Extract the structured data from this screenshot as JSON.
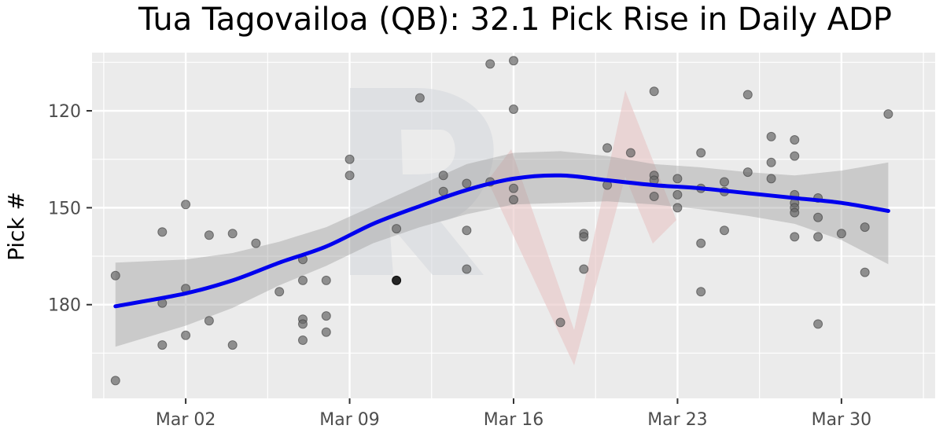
{
  "chart_data": {
    "type": "scatter",
    "title": "Tua Tagovailoa (QB): 32.1 Pick Rise in Daily ADP",
    "xlabel": "",
    "ylabel": "Pick #",
    "x_axis": {
      "type": "date",
      "range": [
        "2020-02-27",
        "2020-04-03"
      ],
      "ticks": [
        {
          "date": "2020-03-02",
          "label": "Mar 02"
        },
        {
          "date": "2020-03-09",
          "label": "Mar 09"
        },
        {
          "date": "2020-03-16",
          "label": "Mar 16"
        },
        {
          "date": "2020-03-23",
          "label": "Mar 23"
        },
        {
          "date": "2020-03-30",
          "label": "Mar 30"
        }
      ]
    },
    "y_axis": {
      "reversed": true,
      "range": [
        102,
        209
      ],
      "ticks": [
        120,
        150,
        180
      ]
    },
    "grid": true,
    "background": "#ebebeb",
    "point_color": "#666666",
    "highlight_color": "#1a1a1a",
    "trend_color": "#0000ee",
    "band_color": "#999999",
    "points": [
      {
        "date": "2020-02-28",
        "pick": 171.0
      },
      {
        "date": "2020-02-28",
        "pick": 203.5
      },
      {
        "date": "2020-03-01",
        "pick": 157.5
      },
      {
        "date": "2020-03-01",
        "pick": 179.5
      },
      {
        "date": "2020-03-01",
        "pick": 192.5
      },
      {
        "date": "2020-03-02",
        "pick": 149.0
      },
      {
        "date": "2020-03-02",
        "pick": 175.0
      },
      {
        "date": "2020-03-02",
        "pick": 189.5
      },
      {
        "date": "2020-03-03",
        "pick": 158.5
      },
      {
        "date": "2020-03-03",
        "pick": 185.0
      },
      {
        "date": "2020-03-04",
        "pick": 158.0
      },
      {
        "date": "2020-03-04",
        "pick": 192.5
      },
      {
        "date": "2020-03-05",
        "pick": 161.0
      },
      {
        "date": "2020-03-06",
        "pick": 176.0
      },
      {
        "date": "2020-03-07",
        "pick": 166.0
      },
      {
        "date": "2020-03-07",
        "pick": 172.5
      },
      {
        "date": "2020-03-07",
        "pick": 184.5
      },
      {
        "date": "2020-03-07",
        "pick": 186.0
      },
      {
        "date": "2020-03-07",
        "pick": 191.0
      },
      {
        "date": "2020-03-08",
        "pick": 172.5
      },
      {
        "date": "2020-03-08",
        "pick": 183.5
      },
      {
        "date": "2020-03-08",
        "pick": 188.5
      },
      {
        "date": "2020-03-09",
        "pick": 135.0
      },
      {
        "date": "2020-03-09",
        "pick": 140.0
      },
      {
        "date": "2020-03-11",
        "pick": 156.5
      },
      {
        "date": "2020-03-11",
        "pick": 172.5,
        "highlight": true
      },
      {
        "date": "2020-03-12",
        "pick": 116.0
      },
      {
        "date": "2020-03-13",
        "pick": 140.0
      },
      {
        "date": "2020-03-13",
        "pick": 145.0
      },
      {
        "date": "2020-03-14",
        "pick": 142.5
      },
      {
        "date": "2020-03-14",
        "pick": 157.0
      },
      {
        "date": "2020-03-14",
        "pick": 169.0
      },
      {
        "date": "2020-03-15",
        "pick": 105.5
      },
      {
        "date": "2020-03-15",
        "pick": 142.0
      },
      {
        "date": "2020-03-16",
        "pick": 104.5
      },
      {
        "date": "2020-03-16",
        "pick": 119.5
      },
      {
        "date": "2020-03-16",
        "pick": 144.0
      },
      {
        "date": "2020-03-16",
        "pick": 147.5
      },
      {
        "date": "2020-03-18",
        "pick": 185.5
      },
      {
        "date": "2020-03-19",
        "pick": 158.0
      },
      {
        "date": "2020-03-19",
        "pick": 159.0
      },
      {
        "date": "2020-03-19",
        "pick": 169.0
      },
      {
        "date": "2020-03-20",
        "pick": 131.5
      },
      {
        "date": "2020-03-20",
        "pick": 143.0
      },
      {
        "date": "2020-03-21",
        "pick": 133.0
      },
      {
        "date": "2020-03-22",
        "pick": 114.0
      },
      {
        "date": "2020-03-22",
        "pick": 140.0
      },
      {
        "date": "2020-03-22",
        "pick": 141.5
      },
      {
        "date": "2020-03-22",
        "pick": 146.5
      },
      {
        "date": "2020-03-23",
        "pick": 141.0
      },
      {
        "date": "2020-03-23",
        "pick": 146.0
      },
      {
        "date": "2020-03-23",
        "pick": 150.0
      },
      {
        "date": "2020-03-24",
        "pick": 133.0
      },
      {
        "date": "2020-03-24",
        "pick": 144.0
      },
      {
        "date": "2020-03-24",
        "pick": 161.0
      },
      {
        "date": "2020-03-24",
        "pick": 176.0
      },
      {
        "date": "2020-03-25",
        "pick": 142.0
      },
      {
        "date": "2020-03-25",
        "pick": 145.0
      },
      {
        "date": "2020-03-25",
        "pick": 157.0
      },
      {
        "date": "2020-03-26",
        "pick": 115.0
      },
      {
        "date": "2020-03-26",
        "pick": 139.0
      },
      {
        "date": "2020-03-27",
        "pick": 128.0
      },
      {
        "date": "2020-03-27",
        "pick": 136.0
      },
      {
        "date": "2020-03-27",
        "pick": 141.0
      },
      {
        "date": "2020-03-28",
        "pick": 129.0
      },
      {
        "date": "2020-03-28",
        "pick": 134.0
      },
      {
        "date": "2020-03-28",
        "pick": 146.0
      },
      {
        "date": "2020-03-28",
        "pick": 148.5
      },
      {
        "date": "2020-03-28",
        "pick": 150.0
      },
      {
        "date": "2020-03-28",
        "pick": 151.5
      },
      {
        "date": "2020-03-28",
        "pick": 159.0
      },
      {
        "date": "2020-03-29",
        "pick": 147.0
      },
      {
        "date": "2020-03-29",
        "pick": 153.0
      },
      {
        "date": "2020-03-29",
        "pick": 159.0
      },
      {
        "date": "2020-03-29",
        "pick": 186.0
      },
      {
        "date": "2020-03-30",
        "pick": 158.0
      },
      {
        "date": "2020-03-31",
        "pick": 156.0
      },
      {
        "date": "2020-03-31",
        "pick": 170.0
      },
      {
        "date": "2020-04-01",
        "pick": 121.0
      }
    ],
    "trend": [
      {
        "date": "2020-02-28",
        "pick": 180.5
      },
      {
        "date": "2020-03-02",
        "pick": 176.5
      },
      {
        "date": "2020-03-04",
        "pick": 172.5
      },
      {
        "date": "2020-03-06",
        "pick": 167.0
      },
      {
        "date": "2020-03-08",
        "pick": 162.0
      },
      {
        "date": "2020-03-10",
        "pick": 155.0
      },
      {
        "date": "2020-03-12",
        "pick": 149.5
      },
      {
        "date": "2020-03-14",
        "pick": 144.5
      },
      {
        "date": "2020-03-16",
        "pick": 141.0
      },
      {
        "date": "2020-03-18",
        "pick": 140.0
      },
      {
        "date": "2020-03-20",
        "pick": 141.5
      },
      {
        "date": "2020-03-22",
        "pick": 143.0
      },
      {
        "date": "2020-03-24",
        "pick": 144.0
      },
      {
        "date": "2020-03-26",
        "pick": 145.5
      },
      {
        "date": "2020-03-28",
        "pick": 147.0
      },
      {
        "date": "2020-03-30",
        "pick": 148.5
      },
      {
        "date": "2020-04-01",
        "pick": 151.0
      }
    ],
    "band_upper": [
      {
        "date": "2020-02-28",
        "pick": 167.0
      },
      {
        "date": "2020-03-02",
        "pick": 166.0
      },
      {
        "date": "2020-03-04",
        "pick": 164.0
      },
      {
        "date": "2020-03-06",
        "pick": 160.5
      },
      {
        "date": "2020-03-08",
        "pick": 156.0
      },
      {
        "date": "2020-03-10",
        "pick": 149.5
      },
      {
        "date": "2020-03-12",
        "pick": 143.0
      },
      {
        "date": "2020-03-14",
        "pick": 136.5
      },
      {
        "date": "2020-03-16",
        "pick": 133.0
      },
      {
        "date": "2020-03-18",
        "pick": 132.5
      },
      {
        "date": "2020-03-20",
        "pick": 134.0
      },
      {
        "date": "2020-03-22",
        "pick": 136.5
      },
      {
        "date": "2020-03-24",
        "pick": 137.5
      },
      {
        "date": "2020-03-26",
        "pick": 139.0
      },
      {
        "date": "2020-03-28",
        "pick": 140.0
      },
      {
        "date": "2020-03-30",
        "pick": 138.5
      },
      {
        "date": "2020-04-01",
        "pick": 136.0
      }
    ],
    "band_lower": [
      {
        "date": "2020-02-28",
        "pick": 193.0
      },
      {
        "date": "2020-03-02",
        "pick": 186.5
      },
      {
        "date": "2020-03-04",
        "pick": 181.0
      },
      {
        "date": "2020-03-06",
        "pick": 174.0
      },
      {
        "date": "2020-03-08",
        "pick": 168.0
      },
      {
        "date": "2020-03-10",
        "pick": 161.0
      },
      {
        "date": "2020-03-12",
        "pick": 156.0
      },
      {
        "date": "2020-03-14",
        "pick": 152.0
      },
      {
        "date": "2020-03-16",
        "pick": 149.0
      },
      {
        "date": "2020-03-18",
        "pick": 148.5
      },
      {
        "date": "2020-03-20",
        "pick": 148.0
      },
      {
        "date": "2020-03-22",
        "pick": 149.0
      },
      {
        "date": "2020-03-24",
        "pick": 150.5
      },
      {
        "date": "2020-03-26",
        "pick": 152.5
      },
      {
        "date": "2020-03-28",
        "pick": 155.0
      },
      {
        "date": "2020-03-30",
        "pick": 160.0
      },
      {
        "date": "2020-04-01",
        "pick": 167.5
      }
    ]
  }
}
